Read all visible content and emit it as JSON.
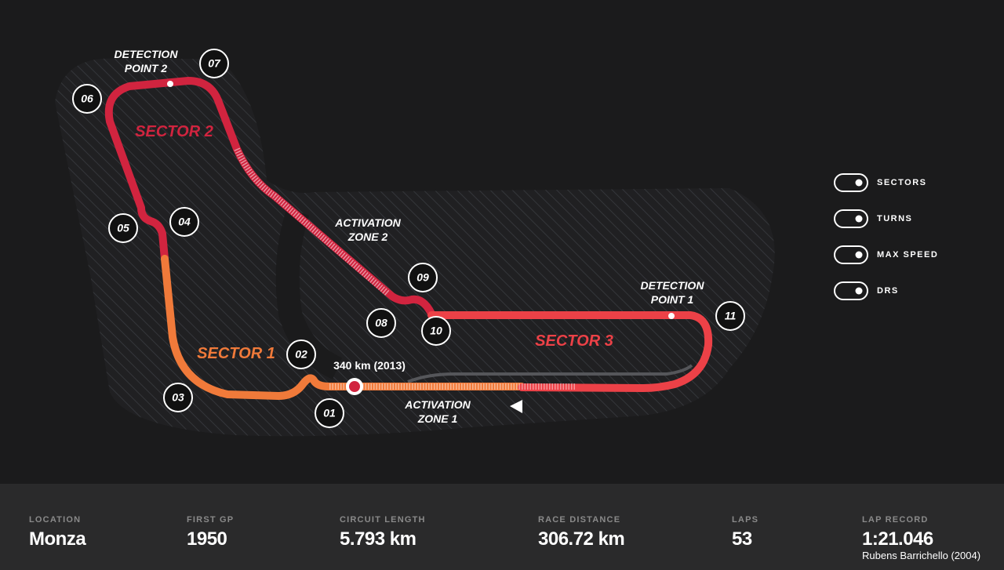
{
  "map": {
    "sectors": [
      "SECTOR 1",
      "SECTOR 2",
      "SECTOR 3"
    ],
    "turns": [
      "01",
      "02",
      "03",
      "04",
      "05",
      "06",
      "07",
      "08",
      "09",
      "10",
      "11"
    ],
    "detection_point_1": [
      "DETECTION",
      "POINT 1"
    ],
    "detection_point_2": [
      "DETECTION",
      "POINT 2"
    ],
    "activation_zone_1": [
      "ACTIVATION",
      "ZONE 1"
    ],
    "activation_zone_2": [
      "ACTIVATION",
      "ZONE 2"
    ],
    "max_speed": "340 km (2013)"
  },
  "controls": [
    "SECTORS",
    "TURNS",
    "MAX SPEED",
    "DRS"
  ],
  "stats": [
    {
      "label": "LOCATION",
      "value": "Monza"
    },
    {
      "label": "FIRST GP",
      "value": "1950"
    },
    {
      "label": "CIRCUIT LENGTH",
      "value": "5.793 km"
    },
    {
      "label": "RACE DISTANCE",
      "value": "306.72 km"
    },
    {
      "label": "LAPS",
      "value": "53"
    },
    {
      "label": "LAP RECORD",
      "value": "1:21.046",
      "detail": "Rubens Barrichello (2004)"
    }
  ]
}
